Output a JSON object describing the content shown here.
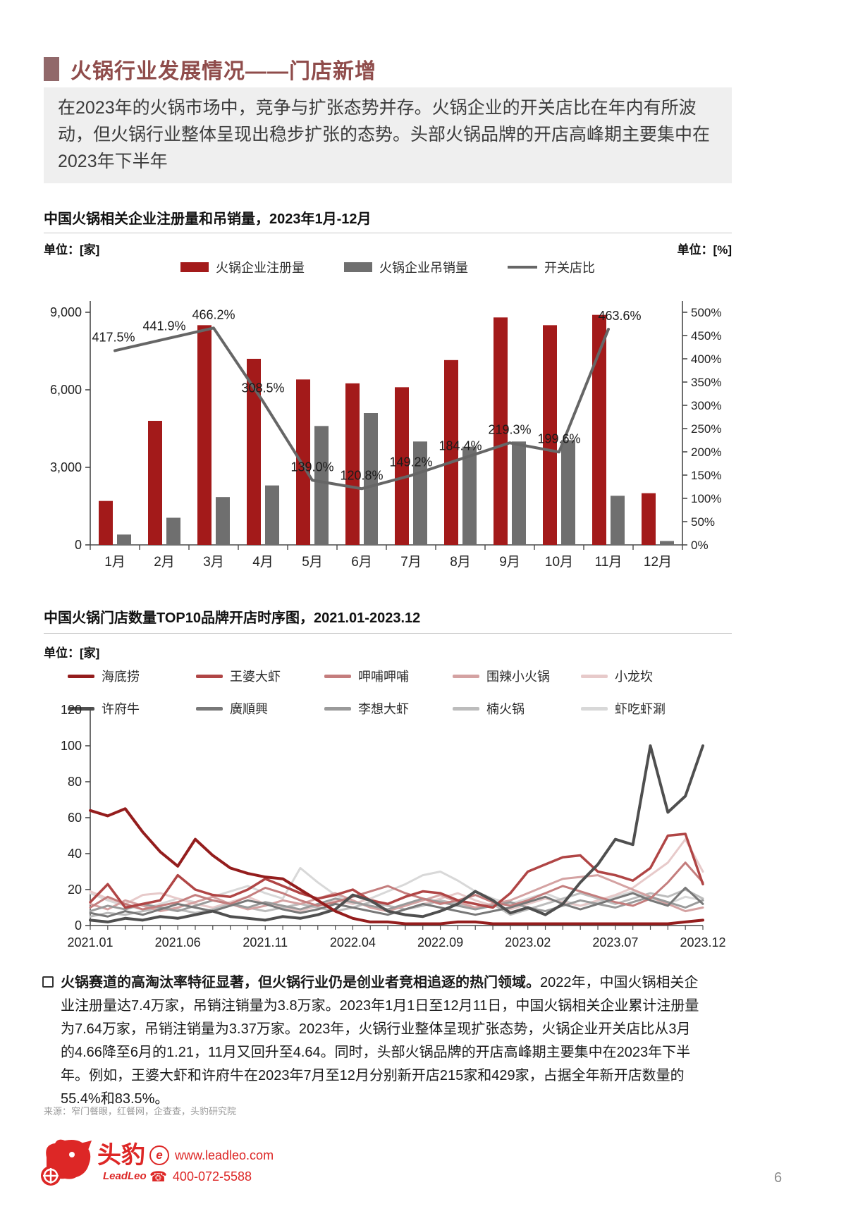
{
  "page": {
    "number": "6"
  },
  "header": {
    "title": "火锅行业发展情况——门店新增",
    "intro": "在2023年的火锅市场中，竞争与扩张态势并存。火锅企业的开关店比在年内有所波动，但火锅行业整体呈现出稳步扩张的态势。头部火锅品牌的开店高峰期主要集中在2023年下半年"
  },
  "chart1": {
    "title": "中国火锅相关企业注册量和吊销量，2023年1月-12月",
    "unit_left": "单位：[家]",
    "unit_right": "单位：[%]",
    "chart_data": {
      "type": "bar+line",
      "categories": [
        "1月",
        "2月",
        "3月",
        "4月",
        "5月",
        "6月",
        "7月",
        "8月",
        "9月",
        "10月",
        "11月",
        "12月"
      ],
      "series": [
        {
          "name": "火锅企业注册量",
          "type": "bar",
          "axis": "left",
          "color": "#a31a1a",
          "values": [
            1700,
            4800,
            8500,
            7200,
            6400,
            6250,
            6100,
            7150,
            8800,
            8500,
            8900,
            2000
          ]
        },
        {
          "name": "火锅企业吊销量",
          "type": "bar",
          "axis": "left",
          "color": "#6f6f6f",
          "values": [
            400,
            1050,
            1850,
            2300,
            4600,
            5100,
            4000,
            3800,
            4000,
            4050,
            1900,
            150
          ]
        },
        {
          "name": "开关店比",
          "type": "line",
          "axis": "right",
          "color": "#666666",
          "values": [
            417.5,
            441.9,
            466.2,
            308.5,
            139.0,
            120.8,
            149.2,
            184.4,
            219.3,
            199.6,
            463.6,
            null
          ],
          "labels": [
            "417.5%",
            "441.9%",
            "466.2%",
            "308.5%",
            "139.0%",
            "120.8%",
            "149.2%",
            "184.4%",
            "219.3%",
            "199.6%",
            "463.6%",
            ""
          ]
        }
      ],
      "left_axis": {
        "max": 9000,
        "ticks": [
          0,
          3000,
          6000,
          9000
        ],
        "tick_labels": [
          "0",
          "3,000",
          "6,000",
          "9,000"
        ]
      },
      "right_axis": {
        "max": 500,
        "step": 50,
        "suffix": "%"
      }
    }
  },
  "chart2": {
    "title": "中国火锅门店数量TOP10品牌开店时序图，2021.01-2023.12",
    "unit_left": "单位：[家]",
    "chart_data": {
      "type": "line",
      "n_points": 36,
      "x_tick_every": 5,
      "x_tick_labels": [
        "2021.01",
        "2021.06",
        "2021.11",
        "2022.04",
        "2022.09",
        "2023.02",
        "2023.07",
        "2023.12"
      ],
      "ylim": [
        0,
        120
      ],
      "y_step": 20,
      "series": [
        {
          "name": "海底捞",
          "color": "#941d1d",
          "width": 4,
          "values": [
            64,
            61,
            65,
            52,
            41,
            33,
            48,
            39,
            32,
            29,
            27,
            26,
            20,
            14,
            8,
            4,
            2,
            2,
            1,
            1,
            1,
            2,
            2,
            1,
            1,
            1,
            1,
            1,
            1,
            1,
            1,
            1,
            1,
            1,
            2,
            3
          ]
        },
        {
          "name": "王婆大虾",
          "color": "#b04545",
          "width": 3.5,
          "values": [
            13,
            23,
            10,
            12,
            14,
            28,
            20,
            17,
            16,
            20,
            26,
            22,
            18,
            15,
            17,
            20,
            14,
            12,
            16,
            19,
            18,
            14,
            12,
            10,
            18,
            30,
            34,
            38,
            39,
            30,
            28,
            25,
            32,
            50,
            51,
            23
          ]
        },
        {
          "name": "呷哺呷哺",
          "color": "#c47d7d",
          "width": 3,
          "values": [
            10,
            16,
            12,
            9,
            11,
            13,
            17,
            14,
            12,
            16,
            21,
            18,
            14,
            11,
            13,
            16,
            19,
            22,
            18,
            15,
            12,
            14,
            17,
            13,
            11,
            14,
            18,
            22,
            19,
            16,
            13,
            11,
            15,
            24,
            35,
            24
          ]
        },
        {
          "name": "围辣小火锅",
          "color": "#d4a2a2",
          "width": 3,
          "values": [
            12,
            9,
            14,
            11,
            8,
            10,
            13,
            16,
            12,
            9,
            11,
            14,
            12,
            15,
            18,
            14,
            10,
            8,
            11,
            14,
            17,
            13,
            10,
            12,
            14,
            18,
            22,
            26,
            27,
            28,
            24,
            20,
            16,
            12,
            8,
            10
          ]
        },
        {
          "name": "小龙坎",
          "color": "#e7caca",
          "width": 3,
          "values": [
            19,
            15,
            12,
            17,
            18,
            15,
            12,
            10,
            13,
            16,
            12,
            10,
            8,
            11,
            14,
            12,
            15,
            11,
            9,
            12,
            15,
            18,
            14,
            11,
            9,
            12,
            15,
            13,
            11,
            14,
            17,
            21,
            28,
            35,
            48,
            30
          ]
        },
        {
          "name": "许府牛",
          "color": "#4f4f4f",
          "width": 4,
          "values": [
            3,
            2,
            4,
            3,
            5,
            4,
            6,
            8,
            5,
            4,
            3,
            5,
            4,
            6,
            9,
            17,
            14,
            8,
            6,
            5,
            8,
            12,
            19,
            14,
            7,
            10,
            6,
            12,
            24,
            34,
            48,
            45,
            100,
            63,
            72,
            100
          ]
        },
        {
          "name": "廣順興",
          "color": "#787878",
          "width": 3,
          "values": [
            7,
            5,
            8,
            6,
            9,
            12,
            10,
            8,
            11,
            14,
            12,
            9,
            7,
            9,
            12,
            10,
            8,
            6,
            9,
            12,
            10,
            8,
            6,
            8,
            10,
            13,
            16,
            12,
            9,
            12,
            15,
            18,
            14,
            11,
            21,
            12
          ]
        },
        {
          "name": "李想大虾",
          "color": "#9a9a9a",
          "width": 3,
          "values": [
            8,
            11,
            9,
            12,
            10,
            8,
            11,
            14,
            12,
            10,
            13,
            11,
            9,
            12,
            15,
            13,
            11,
            9,
            12,
            15,
            13,
            11,
            9,
            11,
            13,
            10,
            8,
            11,
            14,
            12,
            10,
            13,
            16,
            13,
            10,
            14
          ]
        },
        {
          "name": "楠火锅",
          "color": "#bcbcbc",
          "width": 3,
          "values": [
            5,
            7,
            6,
            8,
            10,
            9,
            7,
            9,
            12,
            10,
            8,
            10,
            12,
            10,
            8,
            10,
            13,
            11,
            9,
            11,
            14,
            12,
            10,
            12,
            6,
            9,
            12,
            15,
            18,
            15,
            12,
            15,
            18,
            16,
            20,
            15
          ]
        },
        {
          "name": "虾吃虾涮",
          "color": "#d8d8d8",
          "width": 3,
          "values": [
            18,
            14,
            11,
            9,
            12,
            15,
            13,
            16,
            19,
            22,
            18,
            15,
            32,
            24,
            17,
            12,
            15,
            19,
            23,
            28,
            30,
            25,
            19,
            15,
            12,
            15,
            18,
            14,
            11,
            13,
            16,
            19,
            15,
            12,
            16,
            14
          ]
        }
      ]
    }
  },
  "analysis": {
    "bullet_bold": "火锅赛道的高淘汰率特征显著，但火锅行业仍是创业者竞相追逐的热门领域。",
    "bullet_rest": "2022年，中国火锅相关企业注册量达7.4万家，吊销注销量为3.8万家。2023年1月1日至12月11日，中国火锅相关企业累计注册量为7.64万家，吊销注销量为3.37万家。2023年，火锅行业整体呈现扩张态势，火锅企业开关店比从3月的4.66降至6月的1.21，11月又回升至4.64。同时，头部火锅品牌的开店高峰期主要集中在2023年下半年。例如，王婆大虾和许府牛在2023年7月至12月分别新开店215家和429家，占据全年新开店数量的55.4%和83.5%。"
  },
  "source": "来源：窄门餐眼，红餐网，企查查，头豹研究院",
  "footer": {
    "brand": "头豹",
    "brand_sub": "LeadLeo",
    "website": "www.leadleo.com",
    "phone": "400-072-5588"
  }
}
